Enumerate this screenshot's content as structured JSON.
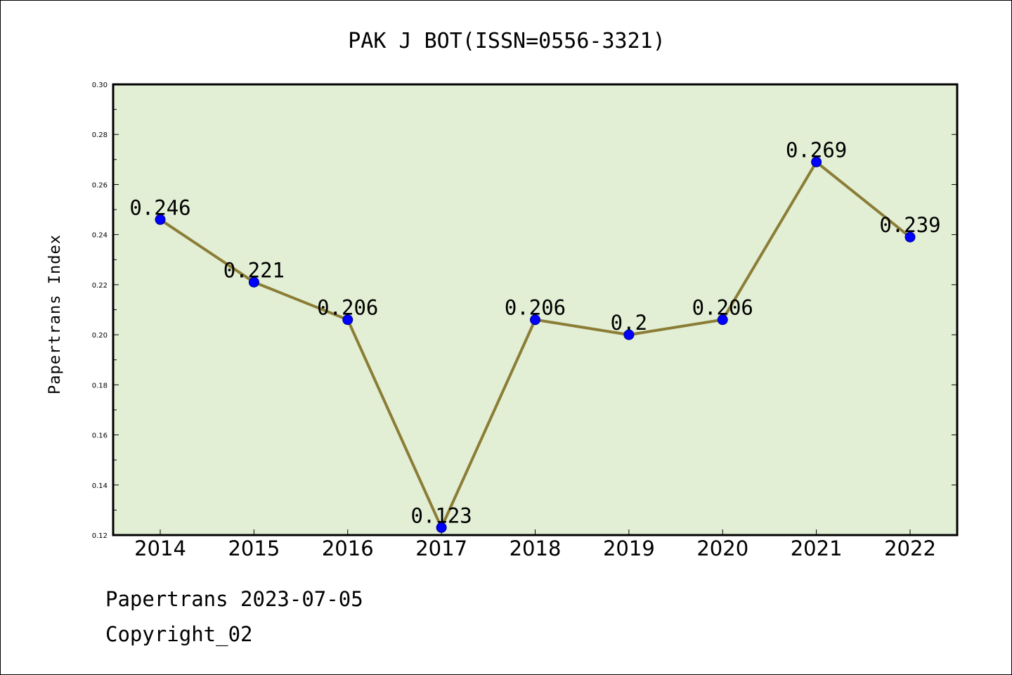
{
  "chart_data": {
    "type": "line",
    "title": "PAK J BOT(ISSN=0556-3321)",
    "xlabel": "",
    "ylabel": "Papertrans Index",
    "categories": [
      "2014",
      "2015",
      "2016",
      "2017",
      "2018",
      "2019",
      "2020",
      "2021",
      "2022"
    ],
    "values": [
      0.246,
      0.221,
      0.206,
      0.123,
      0.206,
      0.2,
      0.206,
      0.269,
      0.239
    ],
    "data_labels": [
      "0.246",
      "0.221",
      "0.206",
      "0.123",
      "0.206",
      "0.2",
      "0.206",
      "0.269",
      "0.239"
    ],
    "ylim": [
      0.12,
      0.3
    ],
    "yticks": [
      "0.12",
      "0.14",
      "0.16",
      "0.18",
      "0.20",
      "0.22",
      "0.24",
      "0.26",
      "0.28",
      "0.30"
    ],
    "grid": false,
    "legend": "none",
    "colors": {
      "plot_background": "#e2efd5",
      "line": "#8b7d36",
      "marker": "#0000ff",
      "marker_edge": "#00008b",
      "axes": "#000000"
    }
  },
  "footer": {
    "line1": "Papertrans 2023-07-05",
    "line2": "Copyright_02"
  }
}
